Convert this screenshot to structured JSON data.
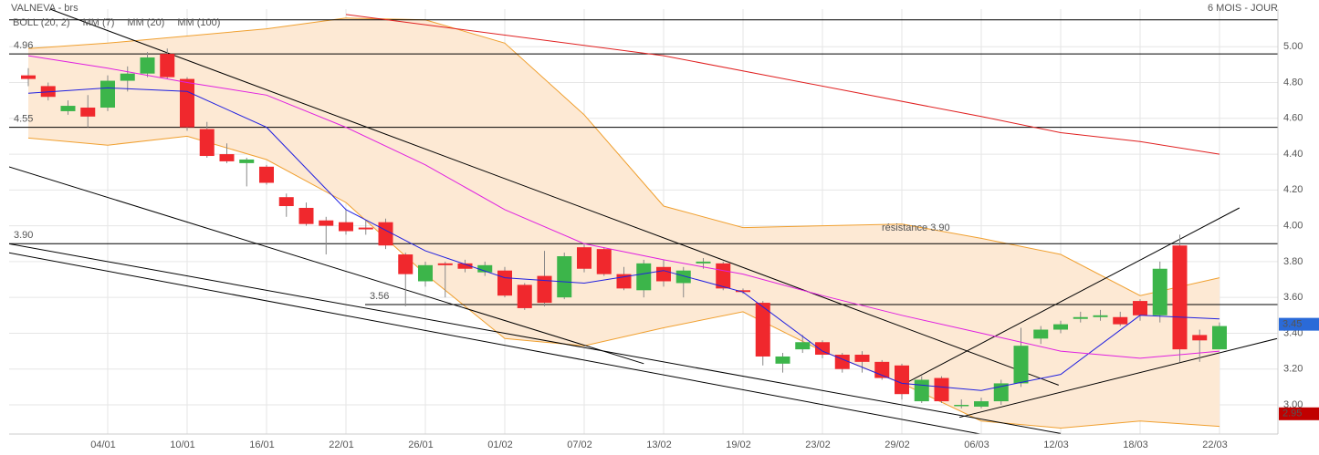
{
  "chart_data": {
    "type": "candlestick",
    "title": "VALNEVA - brs",
    "subtitle": "6 MOIS - JOUR",
    "categories": [
      null,
      null,
      null,
      null,
      "04/01",
      null,
      null,
      null,
      "10/01",
      null,
      null,
      null,
      "16/01",
      null,
      null,
      null,
      "22/01",
      null,
      null,
      null,
      "26/01",
      null,
      null,
      null,
      "01/02",
      null,
      null,
      null,
      "07/02",
      null,
      null,
      null,
      "13/02",
      null,
      null,
      null,
      "19/02",
      null,
      null,
      null,
      "23/02",
      null,
      null,
      null,
      "29/02",
      null,
      null,
      null,
      "06/03",
      null,
      null,
      null,
      "12/03",
      null,
      null,
      null,
      "18/03",
      null,
      null,
      null,
      "22/03"
    ],
    "open": [
      4.84,
      4.78,
      4.64,
      4.66,
      4.66,
      4.81,
      4.85,
      4.96,
      4.82,
      4.54,
      4.4,
      4.35,
      4.33,
      4.16,
      4.1,
      4.03,
      4.02,
      3.99,
      4.02,
      3.84,
      3.69,
      3.79,
      3.79,
      3.74,
      3.75,
      3.67,
      3.72,
      3.6,
      3.88,
      3.87,
      3.73,
      3.64,
      3.77,
      3.68,
      3.79,
      3.79,
      3.64,
      3.57,
      3.23,
      3.31,
      3.35,
      3.28,
      3.28,
      3.24,
      3.22,
      3.02,
      3.15,
      3.0,
      2.99,
      3.02,
      3.12,
      3.37,
      3.42,
      3.48,
      3.49,
      3.49,
      3.58,
      3.5,
      3.89,
      3.39,
      3.31
    ],
    "high": [
      4.88,
      4.8,
      4.7,
      4.73,
      4.84,
      4.89,
      4.97,
      4.99,
      4.83,
      4.58,
      4.46,
      4.38,
      4.34,
      4.18,
      4.13,
      4.05,
      4.09,
      4.03,
      4.04,
      3.85,
      3.8,
      3.8,
      3.81,
      3.8,
      3.77,
      3.68,
      3.86,
      3.85,
      3.9,
      3.88,
      3.77,
      3.81,
      3.81,
      3.77,
      3.82,
      3.8,
      3.65,
      3.58,
      3.29,
      3.39,
      3.36,
      3.29,
      3.3,
      3.25,
      3.23,
      3.16,
      3.16,
      3.03,
      3.04,
      3.14,
      3.43,
      3.44,
      3.47,
      3.52,
      3.53,
      3.52,
      3.59,
      3.8,
      3.95,
      3.42,
      3.46
    ],
    "low": [
      4.78,
      4.7,
      4.62,
      4.55,
      4.64,
      4.75,
      4.83,
      4.82,
      4.53,
      4.38,
      4.35,
      4.22,
      4.23,
      4.05,
      4.0,
      3.84,
      3.95,
      3.95,
      3.87,
      3.55,
      3.66,
      3.6,
      3.74,
      3.72,
      3.6,
      3.53,
      3.55,
      3.59,
      3.74,
      3.72,
      3.64,
      3.6,
      3.66,
      3.6,
      3.76,
      3.64,
      3.62,
      3.22,
      3.18,
      3.29,
      3.26,
      3.18,
      3.18,
      3.14,
      3.03,
      3.01,
      3.01,
      2.98,
      2.98,
      3.0,
      3.1,
      3.34,
      3.4,
      3.46,
      3.47,
      3.44,
      3.47,
      3.46,
      3.24,
      3.24,
      3.31
    ],
    "close": [
      4.82,
      4.72,
      4.67,
      4.61,
      4.81,
      4.85,
      4.94,
      4.83,
      4.55,
      4.39,
      4.36,
      4.37,
      4.24,
      4.11,
      4.01,
      4.0,
      3.97,
      3.98,
      3.89,
      3.73,
      3.78,
      3.78,
      3.76,
      3.78,
      3.61,
      3.54,
      3.57,
      3.83,
      3.76,
      3.73,
      3.65,
      3.79,
      3.69,
      3.75,
      3.8,
      3.65,
      3.63,
      3.27,
      3.27,
      3.35,
      3.28,
      3.2,
      3.24,
      3.15,
      3.06,
      3.14,
      3.02,
      3.0,
      3.02,
      3.12,
      3.33,
      3.42,
      3.45,
      3.49,
      3.5,
      3.45,
      3.5,
      3.76,
      3.31,
      3.36,
      3.44
    ],
    "up_color": "#3cb54a",
    "down_color": "#f0282d",
    "overlays": [
      {
        "name": "BOLL (20, 2)",
        "color": "#f0a030",
        "fill": "#fde9d4",
        "x": [
          0,
          4,
          8,
          12,
          16,
          20,
          24,
          28,
          32,
          36,
          40,
          44,
          48,
          52,
          56,
          60
        ],
        "upper": [
          4.99,
          5.02,
          5.06,
          5.1,
          5.16,
          5.15,
          5.02,
          4.62,
          4.11,
          3.99,
          4.0,
          4.01,
          3.93,
          3.84,
          3.61,
          3.71
        ],
        "lower": [
          4.49,
          4.45,
          4.5,
          4.37,
          4.13,
          3.73,
          3.37,
          3.33,
          3.43,
          3.52,
          3.3,
          3.12,
          2.91,
          2.87,
          2.91,
          2.88
        ]
      },
      {
        "name": "MM (7)",
        "color": "#2020e0",
        "x": [
          0,
          4,
          8,
          12,
          16,
          20,
          24,
          28,
          32,
          36,
          40,
          44,
          48,
          52,
          56,
          60
        ],
        "values": [
          4.74,
          4.77,
          4.75,
          4.55,
          4.09,
          3.86,
          3.71,
          3.68,
          3.75,
          3.63,
          3.3,
          3.12,
          3.08,
          3.17,
          3.5,
          3.48
        ]
      },
      {
        "name": "MM (20)",
        "color": "#e020e0",
        "x": [
          0,
          4,
          8,
          12,
          16,
          20,
          24,
          28,
          32,
          36,
          40,
          44,
          48,
          52,
          56,
          60
        ],
        "values": [
          4.95,
          4.88,
          4.8,
          4.73,
          4.55,
          4.34,
          4.09,
          3.9,
          3.81,
          3.73,
          3.61,
          3.5,
          3.4,
          3.3,
          3.26,
          3.3
        ]
      },
      {
        "name": "MM (100)",
        "color": "#e02020",
        "x": [
          16,
          32,
          48,
          52,
          56,
          60
        ],
        "values": [
          5.18,
          4.95,
          4.61,
          4.52,
          4.47,
          4.4
        ]
      }
    ],
    "ylim": [
      2.837,
      5.21
    ],
    "yticks": [
      {
        "value": 3,
        "label": "3.00"
      },
      {
        "value": 3.2,
        "label": "3.20"
      },
      {
        "value": 3.4,
        "label": "3.40"
      },
      {
        "value": 3.6,
        "label": "3.60"
      },
      {
        "value": 3.8,
        "label": "3.80"
      },
      {
        "value": 4,
        "label": "4.00"
      },
      {
        "value": 4.2,
        "label": "4.20"
      },
      {
        "value": 4.4,
        "label": "4.40"
      },
      {
        "value": 4.6,
        "label": "4.60"
      },
      {
        "value": 4.8,
        "label": "4.80"
      },
      {
        "value": 5,
        "label": "5.00"
      }
    ],
    "grid": true,
    "hlines": [
      5.15
    ],
    "levels": [
      4.96,
      4.55,
      {
        "value": 3.9,
        "label": "3.90"
      },
      3.56
    ],
    "trendlines": [
      {
        "x": [
          1.1,
          51.9
        ],
        "values": [
          5.21,
          3.11
        ]
      },
      {
        "x": [
          -1,
          31
        ],
        "values": [
          4.33,
          3.23
        ]
      },
      {
        "x": [
          -1,
          52
        ],
        "values": [
          3.9,
          2.84
        ]
      },
      {
        "x": [
          -1,
          51.2
        ],
        "values": [
          3.85,
          2.77
        ]
      },
      {
        "x": [
          46.9,
          62.9
        ],
        "values": [
          2.93,
          3.37
        ]
      },
      {
        "x": [
          44,
          61
        ],
        "values": [
          3.11,
          4.1
        ]
      }
    ],
    "annotation": "résistance 3.90",
    "price_tags": [
      {
        "value": 3.45,
        "label": "3.45",
        "color": "#2a6ad8"
      },
      {
        "value": 2.95,
        "label": "2.95",
        "color": "#c00000"
      }
    ]
  }
}
